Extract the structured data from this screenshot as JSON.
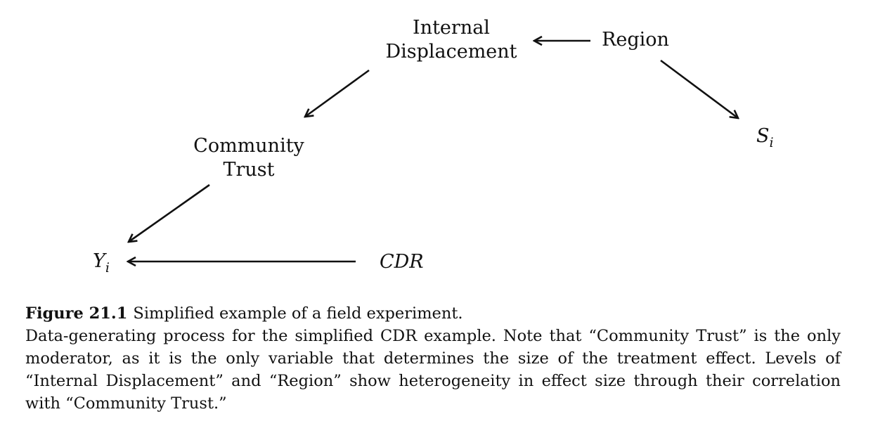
{
  "diagram": {
    "nodes": [
      {
        "id": "internal_displacement",
        "lines": [
          "Internal",
          "Displacement"
        ],
        "italic": false
      },
      {
        "id": "region",
        "lines": [
          "Region"
        ],
        "italic": false
      },
      {
        "id": "community_trust",
        "lines": [
          "Community",
          "Trust"
        ],
        "italic": false
      },
      {
        "id": "s_i",
        "lines": [
          "S"
        ],
        "subscript": "i",
        "italic": true
      },
      {
        "id": "y_i",
        "lines": [
          "Y"
        ],
        "subscript": "i",
        "italic": true
      },
      {
        "id": "cdr",
        "lines": [
          "CDR"
        ],
        "italic": true
      }
    ],
    "edges": [
      {
        "from": "region",
        "to": "internal_displacement"
      },
      {
        "from": "internal_displacement",
        "to": "community_trust"
      },
      {
        "from": "region",
        "to": "s_i"
      },
      {
        "from": "community_trust",
        "to": "y_i"
      },
      {
        "from": "cdr",
        "to": "y_i"
      }
    ]
  },
  "caption": {
    "figure_number": "Figure 21.1",
    "figure_title": "Simplified example of a field experiment.",
    "body": "Data-generating process for the simplified CDR example. Note that “Community Trust” is the only moderator, as it is the only variable that determines the size of the treatment effect. Levels of “Internal Displacement” and “Region” show heterogeneity in effect size through their correlation with “Community Trust.”"
  }
}
